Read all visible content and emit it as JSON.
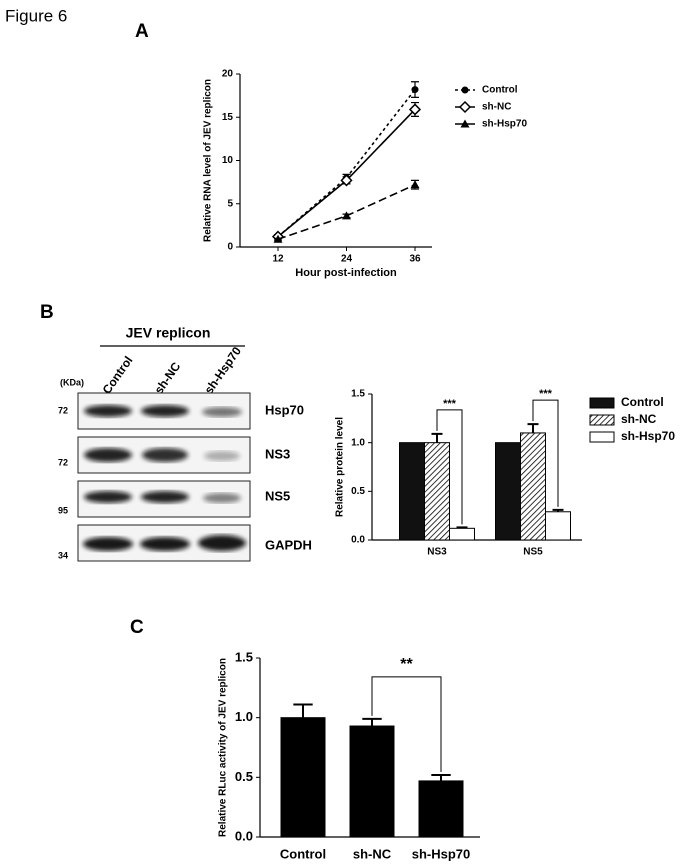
{
  "figure": {
    "title": "Figure 6",
    "panels": [
      "A",
      "B",
      "C"
    ]
  },
  "blot": {
    "header": "JEV replicon",
    "unit": "(KDa)",
    "lanes": [
      "Control",
      "sh-NC",
      "sh-Hsp70"
    ],
    "rows": [
      {
        "marker": "72",
        "protein": "Hsp70"
      },
      {
        "marker": "72",
        "protein": "NS3"
      },
      {
        "marker": "95",
        "protein": "NS5"
      },
      {
        "marker": "34",
        "protein": "GAPDH"
      }
    ]
  },
  "chart_data": [
    {
      "type": "line",
      "x_label": "Hour post-infection",
      "y_label": "Relative RNA level of JEV replicon",
      "categories": [
        "12",
        "24",
        "36"
      ],
      "ylim": [
        0,
        20
      ],
      "yticks": [
        0,
        5,
        10,
        15,
        20
      ],
      "legend": "right",
      "series": [
        {
          "name": "Control",
          "color": "#000000",
          "line_style": "dotted",
          "marker": "circle",
          "values": [
            1.2,
            8.0,
            18.2
          ],
          "errors": [
            0.2,
            0.4,
            0.9
          ]
        },
        {
          "name": "sh-NC",
          "color": "#000000",
          "line_style": "solid",
          "marker": "diamond-open",
          "values": [
            1.2,
            7.7,
            15.9
          ],
          "errors": [
            0.2,
            0.4,
            0.8
          ]
        },
        {
          "name": "sh-Hsp70",
          "color": "#000000",
          "line_style": "dashed",
          "marker": "triangle",
          "values": [
            0.9,
            3.6,
            7.2
          ],
          "errors": [
            0.1,
            0.2,
            0.5
          ]
        }
      ]
    },
    {
      "type": "bar",
      "y_label": "Relative protein level",
      "categories": [
        "NS3",
        "NS5"
      ],
      "ylim": [
        0,
        1.5
      ],
      "yticks": [
        {
          "value": 0,
          "label": "0.0"
        },
        {
          "value": 0.5,
          "label": "0.5"
        },
        {
          "value": 1,
          "label": "1.0"
        },
        {
          "value": 1.5,
          "label": "1.5"
        }
      ],
      "legend": "right",
      "annotations": [
        "***",
        "***"
      ],
      "series": [
        {
          "name": "Control",
          "color": "#111111",
          "values": [
            1.0,
            1.0
          ]
        },
        {
          "name": "sh-NC",
          "color": "#ffffff",
          "hatch": true,
          "values": [
            1.0,
            1.1
          ],
          "errors": [
            0.09,
            0.09
          ]
        },
        {
          "name": "sh-Hsp70",
          "color": "#ffffff",
          "values": [
            0.12,
            0.29
          ],
          "errors": [
            0.01,
            0.02
          ]
        }
      ]
    },
    {
      "type": "bar",
      "y_label": "Relative RLuc activity of JEV replicon",
      "categories": [
        "Control",
        "sh-NC",
        "sh-Hsp70"
      ],
      "ylim": [
        0,
        1.5
      ],
      "yticks": [
        {
          "value": 0,
          "label": "0.0"
        },
        {
          "value": 0.5,
          "label": "0.5"
        },
        {
          "value": 1,
          "label": "1.0"
        },
        {
          "value": 1.5,
          "label": "1.5"
        }
      ],
      "annotations": [
        "**"
      ],
      "series": [
        {
          "color": "#000000",
          "values": [
            1.0,
            0.93,
            0.47
          ],
          "errors": [
            0.11,
            0.06,
            0.05
          ]
        }
      ]
    }
  ]
}
